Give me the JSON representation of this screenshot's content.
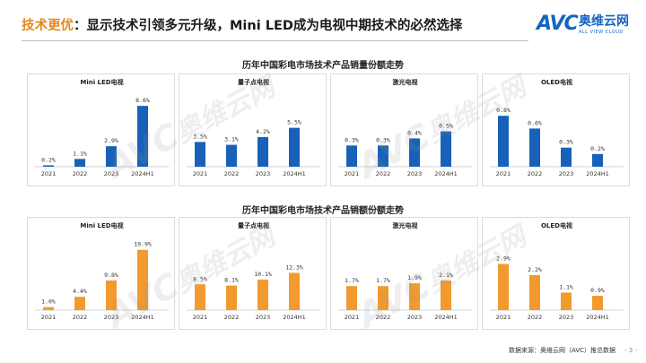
{
  "header": {
    "title_accent": "技术更优",
    "title_rest": "：显示技术引领多元升级，Mini LED成为电视中期技术的必然选择"
  },
  "logo": {
    "mark": "AVC",
    "cn": "奥维云网",
    "en": "ALL VIEW CLOUD"
  },
  "colors": {
    "volume_bar": "#1762b8",
    "value_bar": "#f29a2e",
    "accent": "#e8871a"
  },
  "watermark": {
    "en": "AVC",
    "cn": "奥维云网",
    "sub": "ALL VIEW CLOUD"
  },
  "sections": [
    {
      "title": "历年中国彩电市场技术产品销量份额走势"
    },
    {
      "title": "历年中国彩电市场技术产品销额份额走势"
    }
  ],
  "chart_data": [
    {
      "type": "bar",
      "title": "Mini LED电视",
      "group": "销量份额",
      "categories": [
        "2021",
        "2022",
        "2023",
        "2024H1"
      ],
      "values": [
        0.2,
        1.1,
        2.9,
        8.6
      ],
      "labels": [
        "0.2%",
        "1.1%",
        "2.9%",
        "8.6%"
      ],
      "ylim": [
        0,
        9.0
      ]
    },
    {
      "type": "bar",
      "title": "量子点电视",
      "group": "销量份额",
      "categories": [
        "2021",
        "2022",
        "2023",
        "2024H1"
      ],
      "values": [
        3.5,
        3.1,
        4.2,
        5.5
      ],
      "labels": [
        "3.5%",
        "3.1%",
        "4.2%",
        "5.5%"
      ],
      "ylim": [
        0,
        9.0
      ]
    },
    {
      "type": "bar",
      "title": "激光电视",
      "group": "销量份额",
      "categories": [
        "2021",
        "2022",
        "2023",
        "2024H1"
      ],
      "values": [
        0.3,
        0.3,
        0.4,
        0.5
      ],
      "labels": [
        "0.3%",
        "0.3%",
        "0.4%",
        "0.5%"
      ],
      "ylim": [
        0,
        0.9
      ]
    },
    {
      "type": "bar",
      "title": "OLED电视",
      "group": "销量份额",
      "categories": [
        "2021",
        "2022",
        "2023",
        "2024H1"
      ],
      "values": [
        0.8,
        0.6,
        0.3,
        0.2
      ],
      "labels": [
        "0.8%",
        "0.6%",
        "0.3%",
        "0.2%"
      ],
      "ylim": [
        0,
        1.0
      ]
    },
    {
      "type": "bar",
      "title": "Mini LED电视",
      "group": "销额份额",
      "categories": [
        "2021",
        "2022",
        "2023",
        "2024H1"
      ],
      "values": [
        1.0,
        4.4,
        9.8,
        19.9
      ],
      "labels": [
        "1.0%",
        "4.4%",
        "9.8%",
        "19.9%"
      ],
      "ylim": [
        0,
        21.0
      ]
    },
    {
      "type": "bar",
      "title": "量子点电视",
      "group": "销额份额",
      "categories": [
        "2021",
        "2022",
        "2023",
        "2024H1"
      ],
      "values": [
        8.5,
        8.1,
        10.1,
        12.3
      ],
      "labels": [
        "8.5%",
        "8.1%",
        "10.1%",
        "12.3%"
      ],
      "ylim": [
        0,
        21.0
      ]
    },
    {
      "type": "bar",
      "title": "激光电视",
      "group": "销额份额",
      "categories": [
        "2021",
        "2022",
        "2023",
        "2024H1"
      ],
      "values": [
        1.7,
        1.7,
        1.9,
        2.1
      ],
      "labels": [
        "1.7%",
        "1.7%",
        "1.9%",
        "2.1%"
      ],
      "ylim": [
        0,
        4.5
      ]
    },
    {
      "type": "bar",
      "title": "OLED电视",
      "group": "销额份额",
      "categories": [
        "2021",
        "2022",
        "2023",
        "2024H1"
      ],
      "values": [
        2.9,
        2.2,
        1.1,
        0.9
      ],
      "labels": [
        "2.9%",
        "2.2%",
        "1.1%",
        "0.9%"
      ],
      "ylim": [
        0,
        4.0
      ]
    }
  ],
  "footer": {
    "source": "数据来源：奥维云网（AVC）推总数据",
    "page": "- 3 -"
  }
}
